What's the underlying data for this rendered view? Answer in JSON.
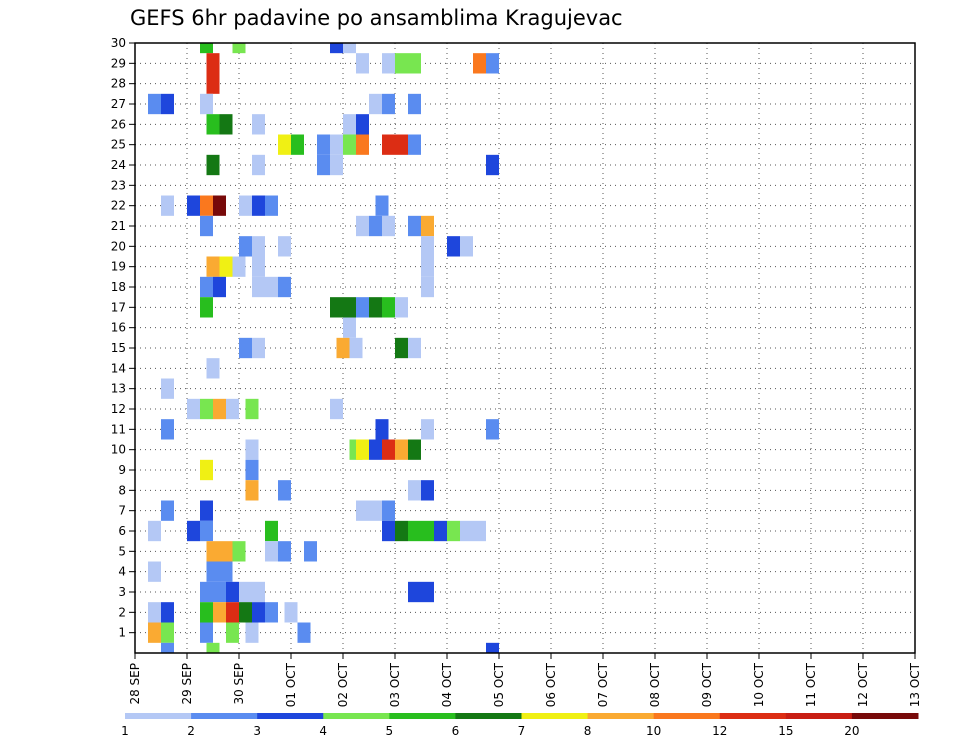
{
  "chart_data": {
    "type": "heatmap",
    "title": "GEFS 6hr padavine po ansamblima Kragujevac",
    "y_ticks": [
      "1",
      "2",
      "3",
      "4",
      "5",
      "6",
      "7",
      "8",
      "9",
      "10",
      "11",
      "12",
      "13",
      "14",
      "15",
      "16",
      "17",
      "18",
      "19",
      "20",
      "21",
      "22",
      "23",
      "24",
      "25",
      "26",
      "27",
      "28",
      "29",
      "30"
    ],
    "x_ticks": [
      "28 SEP",
      "29 SEP",
      "30 SEP",
      "01 OCT",
      "02 OCT",
      "03 OCT",
      "04 OCT",
      "05 OCT",
      "06 OCT",
      "07 OCT",
      "08 OCT",
      "09 OCT",
      "10 OCT",
      "11 OCT",
      "12 OCT",
      "13 OCT"
    ],
    "x_steps_per_day": 4,
    "grid": true,
    "legend_position": "bottom",
    "legend": {
      "labels": [
        "1",
        "2",
        "3",
        "4",
        "5",
        "6",
        "7",
        "8",
        "10",
        "12",
        "15",
        "20"
      ],
      "colors": [
        "#b4c8f5",
        "#5a8cf0",
        "#1e46dc",
        "#78e650",
        "#28be1e",
        "#147814",
        "#f0f014",
        "#faaa32",
        "#fa781e",
        "#dc2d14",
        "#c81e14",
        "#780a0a"
      ]
    },
    "cells": [
      {
        "x": 5.5,
        "m": 30,
        "c": 4
      },
      {
        "x": 8,
        "m": 30,
        "c": 3
      },
      {
        "x": 15.5,
        "m": 30,
        "c": 2
      },
      {
        "x": 16.5,
        "m": 30,
        "c": 0
      },
      {
        "x": 6,
        "m": 29,
        "c": 9
      },
      {
        "x": 17.5,
        "m": 29,
        "c": 0
      },
      {
        "x": 19.5,
        "m": 29,
        "c": 0
      },
      {
        "x": 20.5,
        "m": 29,
        "c": 3
      },
      {
        "x": 21.5,
        "m": 29,
        "c": 3
      },
      {
        "x": 26.5,
        "m": 29,
        "c": 8
      },
      {
        "x": 27.5,
        "m": 29,
        "c": 1
      },
      {
        "x": 6,
        "m": 28,
        "c": 9
      },
      {
        "x": 1.5,
        "m": 27,
        "c": 1
      },
      {
        "x": 2.5,
        "m": 27,
        "c": 2
      },
      {
        "x": 5.5,
        "m": 27,
        "c": 0
      },
      {
        "x": 18.5,
        "m": 27,
        "c": 0
      },
      {
        "x": 19.5,
        "m": 27,
        "c": 1
      },
      {
        "x": 21.5,
        "m": 27,
        "c": 1
      },
      {
        "x": 6,
        "m": 26,
        "c": 4
      },
      {
        "x": 7,
        "m": 26,
        "c": 5
      },
      {
        "x": 9.5,
        "m": 26,
        "c": 0
      },
      {
        "x": 16.5,
        "m": 26,
        "c": 0
      },
      {
        "x": 17.5,
        "m": 26,
        "c": 2
      },
      {
        "x": 11.5,
        "m": 25,
        "c": 6
      },
      {
        "x": 12.5,
        "m": 25,
        "c": 4
      },
      {
        "x": 14.5,
        "m": 25,
        "c": 1
      },
      {
        "x": 15.5,
        "m": 25,
        "c": 0
      },
      {
        "x": 16.5,
        "m": 25,
        "c": 3
      },
      {
        "x": 17.5,
        "m": 25,
        "c": 8
      },
      {
        "x": 19.5,
        "m": 25,
        "c": 9
      },
      {
        "x": 20.5,
        "m": 25,
        "c": 9
      },
      {
        "x": 21.5,
        "m": 25,
        "c": 1
      },
      {
        "x": 6,
        "m": 24,
        "c": 5
      },
      {
        "x": 9.5,
        "m": 24,
        "c": 0
      },
      {
        "x": 14.5,
        "m": 24,
        "c": 1
      },
      {
        "x": 15.5,
        "m": 24,
        "c": 0
      },
      {
        "x": 27.5,
        "m": 24,
        "c": 2
      },
      {
        "x": 2.5,
        "m": 22,
        "c": 0
      },
      {
        "x": 4.5,
        "m": 22,
        "c": 2
      },
      {
        "x": 5.5,
        "m": 22,
        "c": 8
      },
      {
        "x": 6.5,
        "m": 22,
        "c": 11
      },
      {
        "x": 8.5,
        "m": 22,
        "c": 0
      },
      {
        "x": 9.5,
        "m": 22,
        "c": 2
      },
      {
        "x": 10.5,
        "m": 22,
        "c": 1
      },
      {
        "x": 19,
        "m": 22,
        "c": 1
      },
      {
        "x": 5.5,
        "m": 21,
        "c": 1
      },
      {
        "x": 17.5,
        "m": 21,
        "c": 0
      },
      {
        "x": 18.5,
        "m": 21,
        "c": 1
      },
      {
        "x": 19.5,
        "m": 21,
        "c": 0
      },
      {
        "x": 21.5,
        "m": 21,
        "c": 1
      },
      {
        "x": 22.5,
        "m": 21,
        "c": 7
      },
      {
        "x": 8.5,
        "m": 20,
        "c": 1
      },
      {
        "x": 9.5,
        "m": 20,
        "c": 0
      },
      {
        "x": 11.5,
        "m": 20,
        "c": 0
      },
      {
        "x": 22.5,
        "m": 20,
        "c": 0
      },
      {
        "x": 24.5,
        "m": 20,
        "c": 2
      },
      {
        "x": 25.5,
        "m": 20,
        "c": 0
      },
      {
        "x": 6,
        "m": 19,
        "c": 7
      },
      {
        "x": 7,
        "m": 19,
        "c": 6
      },
      {
        "x": 8,
        "m": 19,
        "c": 0
      },
      {
        "x": 9.5,
        "m": 19,
        "c": 0
      },
      {
        "x": 22.5,
        "m": 19,
        "c": 0
      },
      {
        "x": 5.5,
        "m": 18,
        "c": 1
      },
      {
        "x": 6.5,
        "m": 18,
        "c": 2
      },
      {
        "x": 9.5,
        "m": 18,
        "c": 0
      },
      {
        "x": 10.5,
        "m": 18,
        "c": 0
      },
      {
        "x": 11.5,
        "m": 18,
        "c": 1
      },
      {
        "x": 22.5,
        "m": 18,
        "c": 0
      },
      {
        "x": 5.5,
        "m": 17,
        "c": 4
      },
      {
        "x": 15.5,
        "m": 17,
        "c": 5
      },
      {
        "x": 16.5,
        "m": 17,
        "c": 5
      },
      {
        "x": 17.5,
        "m": 17,
        "c": 1
      },
      {
        "x": 18.5,
        "m": 17,
        "c": 5
      },
      {
        "x": 19.5,
        "m": 17,
        "c": 4
      },
      {
        "x": 20.5,
        "m": 17,
        "c": 0
      },
      {
        "x": 16.5,
        "m": 16,
        "c": 0
      },
      {
        "x": 8.5,
        "m": 15,
        "c": 1
      },
      {
        "x": 9.5,
        "m": 15,
        "c": 0
      },
      {
        "x": 16,
        "m": 15,
        "c": 7
      },
      {
        "x": 17,
        "m": 15,
        "c": 0
      },
      {
        "x": 20.5,
        "m": 15,
        "c": 5
      },
      {
        "x": 21.5,
        "m": 15,
        "c": 0
      },
      {
        "x": 6,
        "m": 14,
        "c": 0
      },
      {
        "x": 2.5,
        "m": 13,
        "c": 0
      },
      {
        "x": 4.5,
        "m": 12,
        "c": 0
      },
      {
        "x": 5.5,
        "m": 12,
        "c": 3
      },
      {
        "x": 6.5,
        "m": 12,
        "c": 7
      },
      {
        "x": 7.5,
        "m": 12,
        "c": 0
      },
      {
        "x": 9,
        "m": 12,
        "c": 3
      },
      {
        "x": 15.5,
        "m": 12,
        "c": 0
      },
      {
        "x": 2.5,
        "m": 11,
        "c": 1
      },
      {
        "x": 19,
        "m": 11,
        "c": 2
      },
      {
        "x": 22.5,
        "m": 11,
        "c": 0
      },
      {
        "x": 27.5,
        "m": 11,
        "c": 1
      },
      {
        "x": 9,
        "m": 10,
        "c": 0
      },
      {
        "x": 17,
        "m": 10,
        "c": 3
      },
      {
        "x": 17.5,
        "m": 10,
        "c": 6
      },
      {
        "x": 18.5,
        "m": 10,
        "c": 2
      },
      {
        "x": 19.5,
        "m": 10,
        "c": 9
      },
      {
        "x": 20.5,
        "m": 10,
        "c": 7
      },
      {
        "x": 21.5,
        "m": 10,
        "c": 5
      },
      {
        "x": 5.5,
        "m": 9,
        "c": 6
      },
      {
        "x": 9,
        "m": 9,
        "c": 1
      },
      {
        "x": 9,
        "m": 8,
        "c": 7
      },
      {
        "x": 11.5,
        "m": 8,
        "c": 1
      },
      {
        "x": 21.5,
        "m": 8,
        "c": 0
      },
      {
        "x": 22.5,
        "m": 8,
        "c": 2
      },
      {
        "x": 2.5,
        "m": 7,
        "c": 1
      },
      {
        "x": 5.5,
        "m": 7,
        "c": 2
      },
      {
        "x": 17.5,
        "m": 7,
        "c": 0
      },
      {
        "x": 18.5,
        "m": 7,
        "c": 0
      },
      {
        "x": 19.5,
        "m": 7,
        "c": 1
      },
      {
        "x": 1.5,
        "m": 6,
        "c": 0
      },
      {
        "x": 4.5,
        "m": 6,
        "c": 2
      },
      {
        "x": 5.5,
        "m": 6,
        "c": 1
      },
      {
        "x": 10.5,
        "m": 6,
        "c": 4
      },
      {
        "x": 19.5,
        "m": 6,
        "c": 2
      },
      {
        "x": 20.5,
        "m": 6,
        "c": 5
      },
      {
        "x": 21.5,
        "m": 6,
        "c": 4
      },
      {
        "x": 22.5,
        "m": 6,
        "c": 4
      },
      {
        "x": 23.5,
        "m": 6,
        "c": 2
      },
      {
        "x": 24.5,
        "m": 6,
        "c": 3
      },
      {
        "x": 25.5,
        "m": 6,
        "c": 0
      },
      {
        "x": 26.5,
        "m": 6,
        "c": 0
      },
      {
        "x": 6,
        "m": 5,
        "c": 7
      },
      {
        "x": 7,
        "m": 5,
        "c": 7
      },
      {
        "x": 8,
        "m": 5,
        "c": 3
      },
      {
        "x": 10.5,
        "m": 5,
        "c": 0
      },
      {
        "x": 11.5,
        "m": 5,
        "c": 1
      },
      {
        "x": 13.5,
        "m": 5,
        "c": 1
      },
      {
        "x": 1.5,
        "m": 4,
        "c": 0
      },
      {
        "x": 6,
        "m": 4,
        "c": 1
      },
      {
        "x": 7,
        "m": 4,
        "c": 1
      },
      {
        "x": 5.5,
        "m": 3,
        "c": 1
      },
      {
        "x": 6.5,
        "m": 3,
        "c": 1
      },
      {
        "x": 7.5,
        "m": 3,
        "c": 2
      },
      {
        "x": 8.5,
        "m": 3,
        "c": 0
      },
      {
        "x": 9.5,
        "m": 3,
        "c": 0
      },
      {
        "x": 21.5,
        "m": 3,
        "c": 2
      },
      {
        "x": 22.5,
        "m": 3,
        "c": 2
      },
      {
        "x": 1.5,
        "m": 2,
        "c": 0
      },
      {
        "x": 2.5,
        "m": 2,
        "c": 2
      },
      {
        "x": 5.5,
        "m": 2,
        "c": 4
      },
      {
        "x": 6.5,
        "m": 2,
        "c": 7
      },
      {
        "x": 7.5,
        "m": 2,
        "c": 9
      },
      {
        "x": 8.5,
        "m": 2,
        "c": 5
      },
      {
        "x": 9.5,
        "m": 2,
        "c": 2
      },
      {
        "x": 10.5,
        "m": 2,
        "c": 1
      },
      {
        "x": 12,
        "m": 2,
        "c": 0
      },
      {
        "x": 1.5,
        "m": 1,
        "c": 7
      },
      {
        "x": 2.5,
        "m": 1,
        "c": 3
      },
      {
        "x": 5.5,
        "m": 1,
        "c": 1
      },
      {
        "x": 7.5,
        "m": 1,
        "c": 3
      },
      {
        "x": 9,
        "m": 1,
        "c": 0
      },
      {
        "x": 13,
        "m": 1,
        "c": 1
      },
      {
        "x": 2.5,
        "m": 0,
        "c": 1
      },
      {
        "x": 6,
        "m": 0,
        "c": 3
      },
      {
        "x": 27.5,
        "m": 0,
        "c": 2
      }
    ]
  }
}
